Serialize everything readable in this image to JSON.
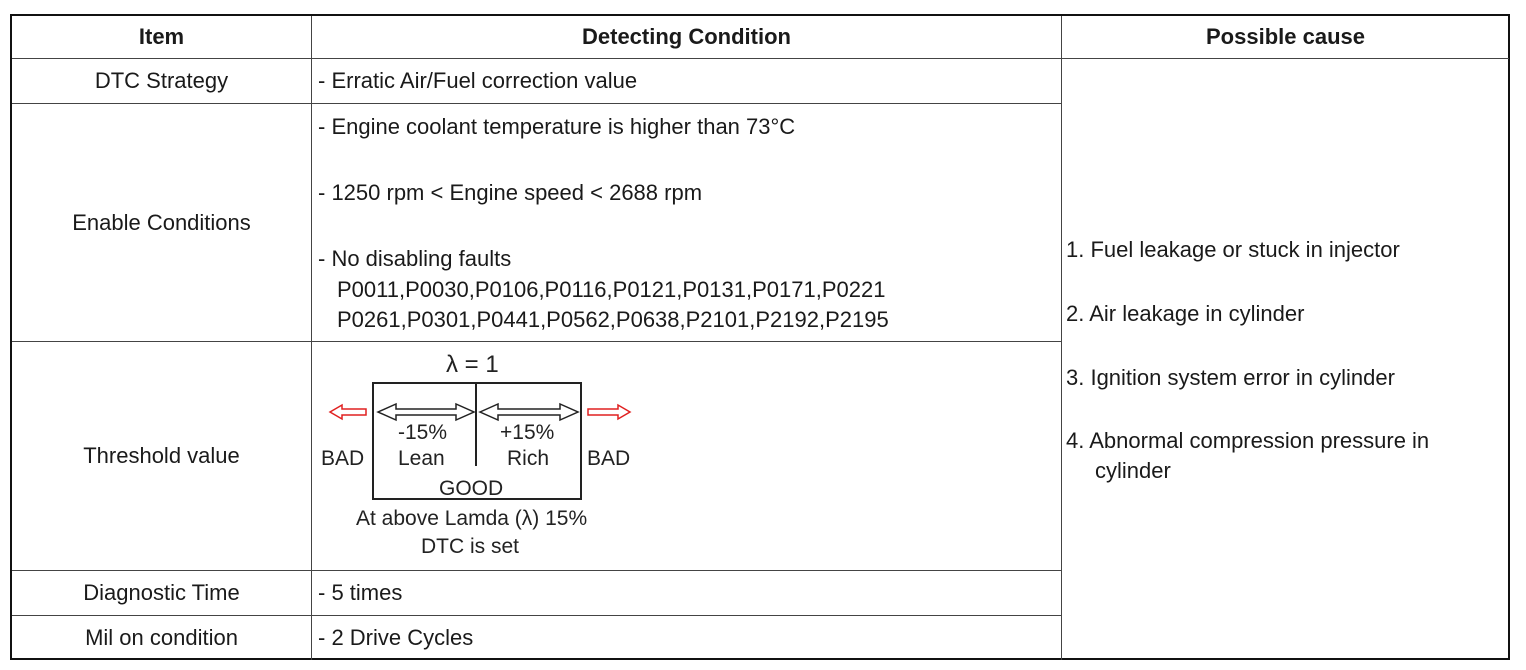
{
  "headers": {
    "item": "Item",
    "condition": "Detecting Condition",
    "cause": "Possible cause"
  },
  "rows": {
    "dtc_strategy": {
      "item": "DTC Strategy",
      "condition": "- Erratic Air/Fuel correction value"
    },
    "enable": {
      "item": "Enable Conditions",
      "line1": "- Engine coolant temperature is higher than 73°C",
      "line2": "- 1250 rpm < Engine speed < 2688 rpm",
      "line3": "- No disabling faults",
      "line4": "P0011,P0030,P0106,P0116,P0121,P0131,P0171,P0221",
      "line5": "P0261,P0301,P0441,P0562,P0638,P2101,P2192,P2195"
    },
    "threshold": {
      "item": "Threshold value",
      "diagram": {
        "lambda": "λ = 1",
        "lean_pct": "-15%",
        "lean": "Lean",
        "rich_pct": "+15%",
        "rich": "Rich",
        "bad_left": "BAD",
        "bad_right": "BAD",
        "good": "GOOD",
        "note1": "At above Lamda (λ) 15%",
        "note2": "DTC is set"
      }
    },
    "diag_time": {
      "item": "Diagnostic Time",
      "condition": "- 5 times"
    },
    "mil": {
      "item": "Mil on condition",
      "condition": "- 2 Drive Cycles"
    }
  },
  "causes": {
    "c1": "1. Fuel leakage or stuck in injector",
    "c2": "2. Air leakage in cylinder",
    "c3": "3. Ignition system error in cylinder",
    "c4a": "4. Abnormal compression pressure in",
    "c4b": "cylinder"
  },
  "colors": {
    "arrow_bad": "#e02020",
    "border": "#111111"
  }
}
